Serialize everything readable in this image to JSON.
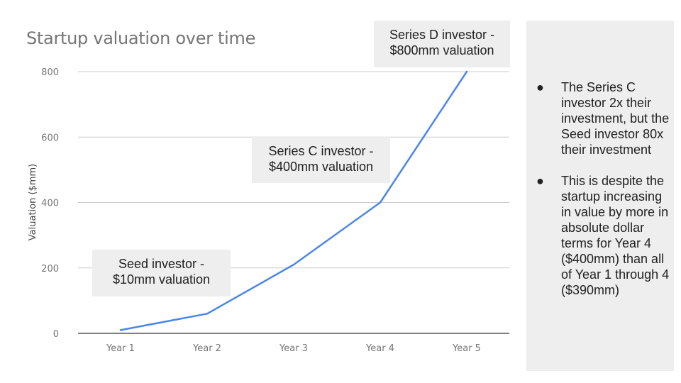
{
  "chart_data": {
    "type": "line",
    "title": "Startup valuation over time",
    "xlabel": "",
    "ylabel": "Valuation ($mm)",
    "categories": [
      "Year 1",
      "Year 2",
      "Year 3",
      "Year 4",
      "Year 5"
    ],
    "series": [
      {
        "values": [
          10,
          60,
          210,
          400,
          800
        ]
      }
    ],
    "ylim": [
      0,
      800
    ],
    "yticks": [
      0,
      200,
      400,
      600,
      800
    ],
    "grid": true,
    "line_color": "#4a86e8",
    "annotations": [
      {
        "lines": [
          "Seed investor -",
          "$10mm valuation"
        ]
      },
      {
        "lines": [
          "Series C investor -",
          "$400mm valuation"
        ]
      },
      {
        "lines": [
          "Series D investor -",
          "$800mm valuation"
        ]
      }
    ]
  },
  "side_panel": {
    "bullet_glyph": "●",
    "bullets": [
      "The Series C investor 2x their investment, but the Seed investor 80x their investment",
      "This is despite the startup increasing in value by more in absolute dollar terms for Year 4 ($400mm) than all of Year 1 through 4 ($390mm)"
    ]
  }
}
